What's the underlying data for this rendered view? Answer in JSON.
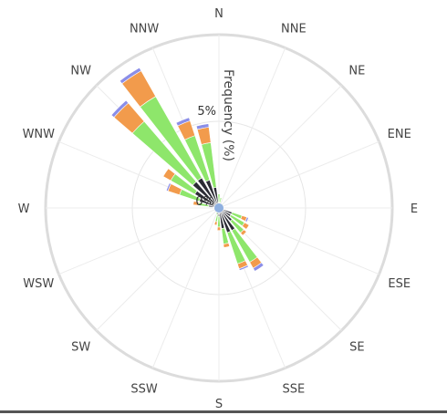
{
  "chart_data": {
    "type": "wind-rose",
    "directions": [
      "N",
      "NNE",
      "NE",
      "ENE",
      "E",
      "ESE",
      "SE",
      "SSE",
      "S",
      "SSW",
      "SW",
      "WSW",
      "W",
      "WNW",
      "NW",
      "NNW"
    ],
    "radial_axis_title": "Frequency (%)",
    "radial_ticks": [
      "0%",
      "5%"
    ],
    "radial_tick_values": [
      0,
      5
    ],
    "radial_max": 10,
    "series_colors": [
      "#8b8ee8",
      "#f29b4c",
      "#8ee66b",
      "#2b2b34"
    ],
    "sectors": [
      {
        "dir": "N",
        "angle": 0,
        "stacks": [
          {
            "range": [
              0.0,
              0.3
            ],
            "color": "#2b2b34"
          },
          {
            "range": [
              0.3,
              0.8
            ],
            "color": "#8ee66b"
          }
        ]
      },
      {
        "dir": "N+",
        "angle": 11.25,
        "stacks": [
          {
            "range": [
              0.0,
              0.3
            ],
            "color": "#2b2b34"
          },
          {
            "range": [
              0.3,
              0.6
            ],
            "color": "#8ee66b"
          }
        ]
      },
      {
        "dir": "NNE",
        "angle": 22.5,
        "stacks": [
          {
            "range": [
              0.0,
              0.2
            ],
            "color": "#2b2b34"
          }
        ]
      },
      {
        "dir": "ESE",
        "angle": 112.5,
        "stacks": [
          {
            "range": [
              0.0,
              0.8
            ],
            "color": "#2b2b34"
          },
          {
            "range": [
              0.8,
              1.4
            ],
            "color": "#8ee66b"
          },
          {
            "range": [
              1.4,
              1.7
            ],
            "color": "#f29b4c"
          },
          {
            "range": [
              1.7,
              1.8
            ],
            "color": "#8b8ee8"
          }
        ]
      },
      {
        "dir": "ESE+",
        "angle": 123.75,
        "stacks": [
          {
            "range": [
              0.0,
              0.8
            ],
            "color": "#2b2b34"
          },
          {
            "range": [
              0.8,
              1.7
            ],
            "color": "#8ee66b"
          },
          {
            "range": [
              1.7,
              2.0
            ],
            "color": "#f29b4c"
          }
        ]
      },
      {
        "dir": "SE",
        "angle": 135,
        "stacks": [
          {
            "range": [
              0.0,
              1.0
            ],
            "color": "#2b2b34"
          },
          {
            "range": [
              1.0,
              1.9
            ],
            "color": "#8ee66b"
          },
          {
            "range": [
              1.9,
              2.1
            ],
            "color": "#f29b4c"
          }
        ]
      },
      {
        "dir": "SE+",
        "angle": 146.25,
        "stacks": [
          {
            "range": [
              0.0,
              1.5
            ],
            "color": "#2b2b34"
          },
          {
            "range": [
              1.5,
              3.6
            ],
            "color": "#8ee66b"
          },
          {
            "range": [
              3.6,
              4.0
            ],
            "color": "#f29b4c"
          },
          {
            "range": [
              4.0,
              4.2
            ],
            "color": "#8b8ee8"
          }
        ]
      },
      {
        "dir": "SSE",
        "angle": 157.5,
        "stacks": [
          {
            "range": [
              0.0,
              1.5
            ],
            "color": "#2b2b34"
          },
          {
            "range": [
              1.5,
              3.4
            ],
            "color": "#8ee66b"
          },
          {
            "range": [
              3.4,
              3.7
            ],
            "color": "#f29b4c"
          },
          {
            "range": [
              3.7,
              3.8
            ],
            "color": "#8b8ee8"
          }
        ]
      },
      {
        "dir": "SSE+",
        "angle": 168.75,
        "stacks": [
          {
            "range": [
              0.0,
              1.2
            ],
            "color": "#2b2b34"
          },
          {
            "range": [
              1.2,
              2.1
            ],
            "color": "#8ee66b"
          },
          {
            "range": [
              2.1,
              2.3
            ],
            "color": "#f29b4c"
          }
        ]
      },
      {
        "dir": "S",
        "angle": 180,
        "stacks": [
          {
            "range": [
              0.0,
              0.5
            ],
            "color": "#2b2b34"
          },
          {
            "range": [
              0.5,
              1.1
            ],
            "color": "#8ee66b"
          },
          {
            "range": [
              1.1,
              1.3
            ],
            "color": "#f29b4c"
          }
        ]
      },
      {
        "dir": "S+",
        "angle": 191.25,
        "stacks": [
          {
            "range": [
              0.0,
              0.4
            ],
            "color": "#2b2b34"
          },
          {
            "range": [
              0.4,
              0.8
            ],
            "color": "#8ee66b"
          },
          {
            "range": [
              0.8,
              1.0
            ],
            "color": "#f29b4c"
          }
        ]
      },
      {
        "dir": "SSW",
        "angle": 202.5,
        "stacks": [
          {
            "range": [
              0.0,
              0.2
            ],
            "color": "#2b2b34"
          },
          {
            "range": [
              0.2,
              0.4
            ],
            "color": "#8ee66b"
          }
        ]
      },
      {
        "dir": "W",
        "angle": 270,
        "stacks": [
          {
            "range": [
              0.0,
              0.3
            ],
            "color": "#2b2b34"
          }
        ]
      },
      {
        "dir": "W+",
        "angle": 281.25,
        "stacks": [
          {
            "range": [
              0.0,
              0.6
            ],
            "color": "#2b2b34"
          },
          {
            "range": [
              0.6,
              1.2
            ],
            "color": "#8ee66b"
          },
          {
            "range": [
              1.2,
              1.5
            ],
            "color": "#f29b4c"
          }
        ]
      },
      {
        "dir": "WNW",
        "angle": 292.5,
        "stacks": [
          {
            "range": [
              0.0,
              1.2
            ],
            "color": "#2b2b34"
          },
          {
            "range": [
              1.2,
              2.4
            ],
            "color": "#8ee66b"
          },
          {
            "range": [
              2.4,
              3.1
            ],
            "color": "#f29b4c"
          },
          {
            "range": [
              3.1,
              3.2
            ],
            "color": "#8b8ee8"
          }
        ]
      },
      {
        "dir": "WNW+",
        "angle": 303.75,
        "stacks": [
          {
            "range": [
              0.0,
              1.6
            ],
            "color": "#2b2b34"
          },
          {
            "range": [
              1.6,
              3.2
            ],
            "color": "#8ee66b"
          },
          {
            "range": [
              3.2,
              3.7
            ],
            "color": "#f29b4c"
          }
        ]
      },
      {
        "dir": "NW",
        "angle": 315,
        "stacks": [
          {
            "range": [
              0.0,
              2.0
            ],
            "color": "#2b2b34"
          },
          {
            "range": [
              2.0,
              6.6
            ],
            "color": "#8ee66b"
          },
          {
            "range": [
              6.6,
              8.0
            ],
            "color": "#f29b4c"
          },
          {
            "range": [
              8.0,
              8.2
            ],
            "color": "#8b8ee8"
          }
        ]
      },
      {
        "dir": "NW+",
        "angle": 326.25,
        "stacks": [
          {
            "range": [
              0.0,
              2.0
            ],
            "color": "#2b2b34"
          },
          {
            "range": [
              2.0,
              7.4
            ],
            "color": "#8ee66b"
          },
          {
            "range": [
              7.4,
              9.1
            ],
            "color": "#f29b4c"
          },
          {
            "range": [
              9.1,
              9.3
            ],
            "color": "#8b8ee8"
          }
        ]
      },
      {
        "dir": "NNW",
        "angle": 337.5,
        "stacks": [
          {
            "range": [
              0.0,
              1.7
            ],
            "color": "#2b2b34"
          },
          {
            "range": [
              1.7,
              4.4
            ],
            "color": "#8ee66b"
          },
          {
            "range": [
              4.4,
              5.3
            ],
            "color": "#f29b4c"
          },
          {
            "range": [
              5.3,
              5.5
            ],
            "color": "#8b8ee8"
          }
        ]
      },
      {
        "dir": "NNW+",
        "angle": 348.75,
        "stacks": [
          {
            "range": [
              0.0,
              1.2
            ],
            "color": "#2b2b34"
          },
          {
            "range": [
              1.2,
              3.8
            ],
            "color": "#8ee66b"
          },
          {
            "range": [
              3.8,
              4.7
            ],
            "color": "#f29b4c"
          },
          {
            "range": [
              4.7,
              4.9
            ],
            "color": "#8b8ee8"
          }
        ]
      }
    ],
    "grid": true,
    "legend": "none"
  }
}
